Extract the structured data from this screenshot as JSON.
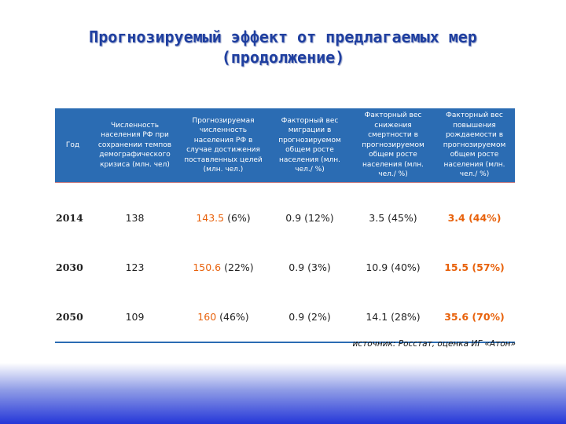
{
  "header": {
    "title_line1": "Прогнозируемый эффект от предлагаемых мер",
    "title_line2": "(продолжение)"
  },
  "table": {
    "columns": [
      "Год",
      "Численность населения РФ при сохранении темпов демографического кризиса (млн. чел)",
      "Прогнозируемая численность населения РФ в случае достижения поставленных целей (млн. чел.)",
      "Факторный вес миграции в прогнозируемом общем росте населения (млн. чел./ %)",
      "Факторный вес снижения смертности в прогнозируемом общем росте населения (млн. чел./ %)",
      "Факторный вес повышения рождаемости в прогнозируемом общем росте населения (млн. чел./ %)"
    ],
    "rows": [
      [
        "2014",
        "138",
        [
          "143.5",
          "(6%)"
        ],
        "0.9 (12%)",
        "3.5 (45%)",
        "3.4 (44%)"
      ],
      [
        "2030",
        "123",
        [
          "150.6",
          "(22%)"
        ],
        "0.9 (3%)",
        "10.9 (40%)",
        "15.5 (57%)"
      ],
      [
        "2050",
        "109",
        [
          "160",
          "(46%)"
        ],
        "0.9 (2%)",
        "14.1 (28%)",
        "35.6 (70%)"
      ]
    ]
  },
  "source": "источник: Росстат, оценка ИГ «Атон»"
}
